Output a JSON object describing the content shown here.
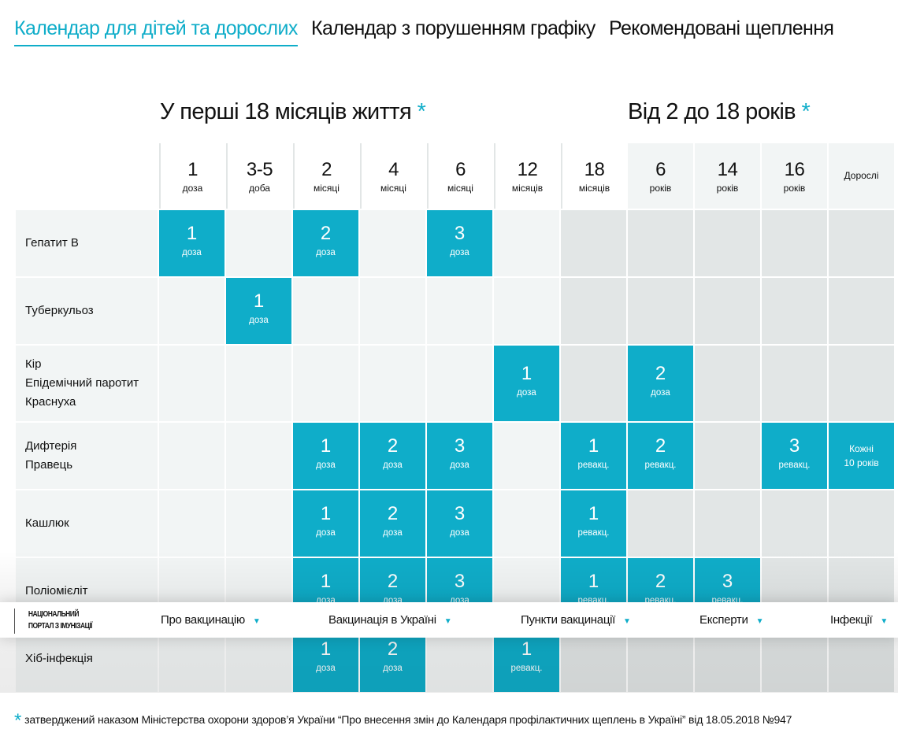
{
  "tabs": [
    {
      "label": "Календар для дітей та дорослих",
      "active": true
    },
    {
      "label": "Календар з порушенням графіку",
      "active": false
    },
    {
      "label": "Рекомендовані щеплення",
      "active": false
    }
  ],
  "sections": {
    "first": {
      "title": "У перші 18 місяців життя",
      "asterisk": "*"
    },
    "second": {
      "title": "Від 2 до 18 років",
      "asterisk": "*"
    }
  },
  "columns": [
    {
      "num": "1",
      "unit": "доза"
    },
    {
      "num": "3-5",
      "unit": "доба"
    },
    {
      "num": "2",
      "unit": "місяці"
    },
    {
      "num": "4",
      "unit": "місяці"
    },
    {
      "num": "6",
      "unit": "місяці"
    },
    {
      "num": "12",
      "unit": "місяців"
    },
    {
      "num": "18",
      "unit": "місяців"
    },
    {
      "num": "6",
      "unit": "років"
    },
    {
      "num": "14",
      "unit": "років"
    },
    {
      "num": "16",
      "unit": "років"
    },
    {
      "num": "",
      "unit": "Дорослі"
    }
  ],
  "rows": [
    {
      "label": [
        "Гепатит В"
      ],
      "cells": [
        {
          "num": "1",
          "unit": "доза"
        },
        null,
        {
          "num": "2",
          "unit": "доза"
        },
        null,
        {
          "num": "3",
          "unit": "доза"
        },
        null,
        null,
        null,
        null,
        null,
        null
      ]
    },
    {
      "label": [
        "Туберкульоз"
      ],
      "cells": [
        null,
        {
          "num": "1",
          "unit": "доза"
        },
        null,
        null,
        null,
        null,
        null,
        null,
        null,
        null,
        null
      ]
    },
    {
      "label": [
        "Кір",
        "Епідемічний паротит",
        "Краснуха"
      ],
      "cells": [
        null,
        null,
        null,
        null,
        null,
        {
          "num": "1",
          "unit": "доза"
        },
        null,
        {
          "num": "2",
          "unit": "доза"
        },
        null,
        null,
        null
      ]
    },
    {
      "label": [
        "Дифтерія",
        "Правець"
      ],
      "cells": [
        null,
        null,
        {
          "num": "1",
          "unit": "доза"
        },
        {
          "num": "2",
          "unit": "доза"
        },
        {
          "num": "3",
          "unit": "доза"
        },
        null,
        {
          "num": "1",
          "unit": "ревакц."
        },
        {
          "num": "2",
          "unit": "ревакц."
        },
        null,
        {
          "num": "3",
          "unit": "ревакц."
        },
        {
          "text": [
            "Кожні",
            "10 років"
          ]
        }
      ]
    },
    {
      "label": [
        "Кашлюк"
      ],
      "cells": [
        null,
        null,
        {
          "num": "1",
          "unit": "доза"
        },
        {
          "num": "2",
          "unit": "доза"
        },
        {
          "num": "3",
          "unit": "доза"
        },
        null,
        {
          "num": "1",
          "unit": "ревакц."
        },
        null,
        null,
        null,
        null
      ]
    },
    {
      "label": [
        "Поліомієліт"
      ],
      "cells": [
        null,
        null,
        {
          "num": "1",
          "unit": "доза"
        },
        {
          "num": "2",
          "unit": "доза"
        },
        {
          "num": "3",
          "unit": "доза"
        },
        null,
        {
          "num": "1",
          "unit": "ревакц."
        },
        {
          "num": "2",
          "unit": "ревакц."
        },
        {
          "num": "3",
          "unit": "ревакц."
        },
        null,
        null
      ]
    },
    {
      "label": [
        "Хіб-інфекція"
      ],
      "cells": [
        null,
        null,
        {
          "num": "1",
          "unit": "доза"
        },
        {
          "num": "2",
          "unit": "доза"
        },
        null,
        {
          "num": "1",
          "unit": "ревакц."
        },
        null,
        null,
        null,
        null,
        null
      ]
    }
  ],
  "nav": {
    "logo": [
      "НАЦІОНАЛЬНИЙ",
      "ПОРТАЛ З ІМУНІЗАЦІЇ"
    ],
    "items": [
      "Про вакцинацію",
      "Вакцинація в Україні",
      "Пункти вакцинації",
      "Експерти",
      "Інфекції"
    ]
  },
  "footnote": {
    "asterisk": "*",
    "text": "затверджений наказом Міністерства охорони здоров’я України “Про внесення змін до Календаря профілактичних щеплень в Україні” від 18.05.2018 №947"
  },
  "colors": {
    "accent": "#0fadc9",
    "cell_light": "#f2f5f5",
    "cell_dark": "#e2e6e6"
  }
}
